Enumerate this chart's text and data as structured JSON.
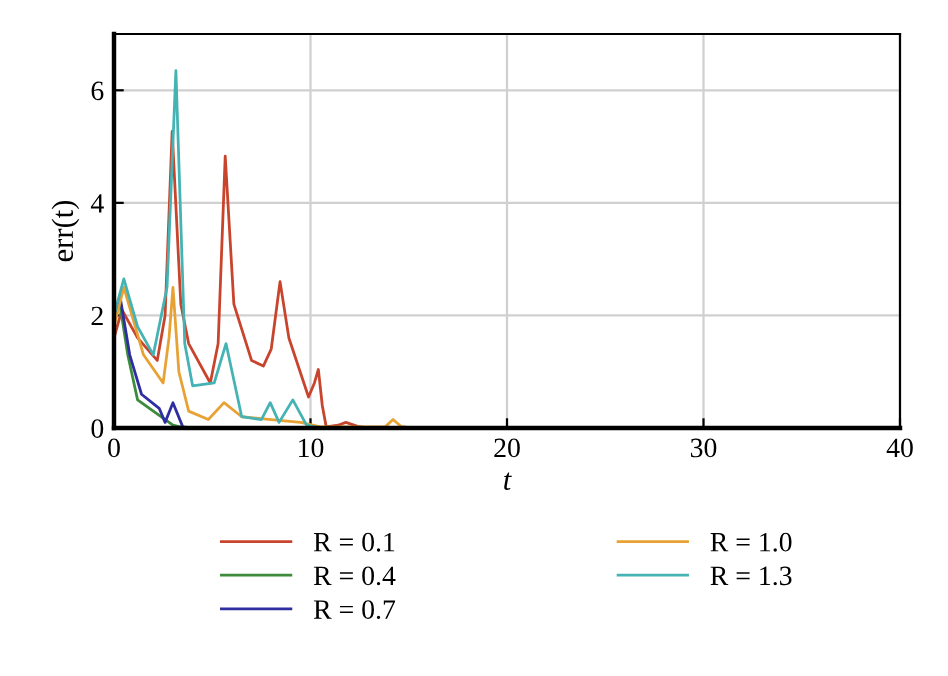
{
  "chart_data": {
    "type": "line",
    "xlabel": "t",
    "ylabel": "err(t)",
    "xlim": [
      0,
      40
    ],
    "xticks": [
      0,
      10,
      20,
      30,
      40
    ],
    "ylim": [
      0,
      7
    ],
    "yticks": [
      0,
      2,
      4,
      6
    ],
    "grid": true,
    "legend": "bottom",
    "marker": "none",
    "line_style": "solid",
    "series": [
      {
        "name": "R = 0.1",
        "color": "#c8442c",
        "x": [
          0,
          0.4,
          1.2,
          2.2,
          2.6,
          2.96,
          3.4,
          3.8,
          4.9,
          5.3,
          5.66,
          6.1,
          7.0,
          7.6,
          8.0,
          8.45,
          8.9,
          9.9,
          10.2,
          10.4,
          10.6,
          10.8,
          11.4,
          11.8,
          12.4,
          13,
          40
        ],
        "values": [
          1.6,
          2.1,
          1.6,
          1.2,
          2.0,
          5.27,
          2.2,
          1.5,
          0.8,
          1.5,
          4.83,
          2.2,
          1.2,
          1.1,
          1.4,
          2.6,
          1.6,
          0.55,
          0.8,
          1.04,
          0.4,
          0.02,
          0.05,
          0.1,
          0.03,
          0,
          0
        ]
      },
      {
        "name": "R = 0.4",
        "color": "#3d8b3d",
        "x": [
          0,
          0.3,
          0.7,
          1.2,
          2.0,
          3.0,
          3.6
        ],
        "values": [
          2.0,
          2.2,
          1.3,
          0.5,
          0.3,
          0.05,
          0
        ]
      },
      {
        "name": "R = 0.7",
        "color": "#2e2ea0",
        "x": [
          0,
          0.3,
          0.8,
          1.4,
          2.3,
          2.6,
          3.0,
          3.5,
          4.0
        ],
        "values": [
          1.9,
          2.35,
          1.3,
          0.6,
          0.35,
          0.1,
          0.45,
          0.02,
          0
        ]
      },
      {
        "name": "R = 1.0",
        "color": "#e8a234",
        "x": [
          0,
          0.5,
          1.5,
          2.5,
          2.8,
          3.0,
          3.3,
          3.8,
          4.8,
          5.6,
          6.5,
          8.0,
          9.5,
          10.5,
          13.8,
          14.2,
          14.6,
          15.2,
          40
        ],
        "values": [
          1.8,
          2.5,
          1.3,
          0.8,
          1.6,
          2.5,
          1.0,
          0.3,
          0.15,
          0.45,
          0.2,
          0.15,
          0.1,
          0.02,
          0.02,
          0.15,
          0.03,
          0,
          0
        ]
      },
      {
        "name": "R = 1.3",
        "color": "#45b3b3",
        "x": [
          0,
          0.5,
          1.2,
          2.0,
          2.7,
          3.15,
          3.6,
          4.0,
          5.1,
          5.7,
          6.5,
          7.5,
          7.95,
          8.4,
          9.1,
          9.8,
          10.5,
          40
        ],
        "values": [
          2.0,
          2.65,
          1.8,
          1.3,
          2.5,
          6.35,
          1.5,
          0.75,
          0.8,
          1.5,
          0.2,
          0.15,
          0.45,
          0.1,
          0.5,
          0.05,
          0,
          0
        ]
      }
    ]
  }
}
